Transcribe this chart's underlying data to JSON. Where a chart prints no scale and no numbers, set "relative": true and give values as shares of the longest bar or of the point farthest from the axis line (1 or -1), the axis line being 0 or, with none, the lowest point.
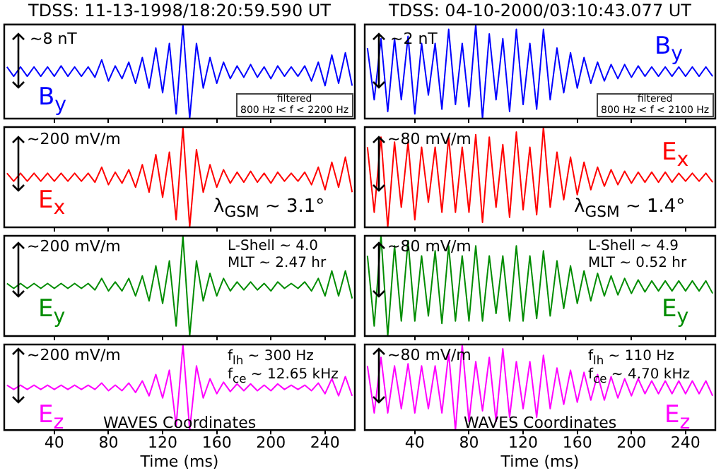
{
  "chart_data": [
    {
      "type": "line",
      "title": "TDSS: 11-13-1998/18:20:59.590 UT",
      "relative": true,
      "marker": "none",
      "tick_labels": false,
      "xlim": [
        3,
        262
      ],
      "xticks": [
        40,
        80,
        120,
        160,
        200,
        240
      ],
      "annotations": [
        "~8 nT",
        "filtered\n800 Hz < f < 2200 Hz"
      ],
      "series": [
        {
          "name": "B$_{y}$",
          "color": "#0000ff",
          "x": [
            5,
            10,
            15,
            20,
            25,
            30,
            35,
            40,
            45,
            50,
            55,
            60,
            65,
            70,
            75,
            80,
            85,
            90,
            95,
            100,
            105,
            110,
            115,
            120,
            125,
            130,
            135,
            140,
            145,
            150,
            155,
            160,
            165,
            170,
            175,
            180,
            185,
            190,
            195,
            200,
            205,
            210,
            215,
            220,
            225,
            230,
            235,
            240,
            245,
            250,
            255,
            260
          ],
          "values": [
            0.55,
            0.45,
            0.55,
            0.45,
            0.55,
            0.45,
            0.55,
            0.45,
            0.56,
            0.45,
            0.55,
            0.45,
            0.55,
            0.44,
            0.625,
            0.4,
            0.56,
            0.425,
            0.6,
            0.375,
            0.65,
            0.325,
            0.75,
            0.275,
            0.8,
            0.05,
            1,
            0,
            0.8,
            0.325,
            0.65,
            0.375,
            0.6,
            0.425,
            0.56,
            0.44,
            0.575,
            0.44,
            0.55,
            0.425,
            0.56,
            0.45,
            0.55,
            0.45,
            0.56,
            0.4,
            0.6,
            0.35,
            0.675,
            0.375,
            0.7,
            0.35
          ]
        }
      ]
    },
    {
      "type": "line",
      "relative": true,
      "marker": "none",
      "tick_labels": false,
      "xlim": [
        3,
        262
      ],
      "xticks": [
        40,
        80,
        120,
        160,
        200,
        240
      ],
      "annotations": [
        "~200 mV/m",
        "λ$_{GSM}$ ~ 3.1°"
      ],
      "series": [
        {
          "name": "E$_{x}$",
          "color": "#ff0000",
          "x": [
            5,
            10,
            15,
            20,
            25,
            30,
            35,
            40,
            45,
            50,
            55,
            60,
            65,
            70,
            75,
            80,
            85,
            90,
            95,
            100,
            105,
            110,
            115,
            120,
            125,
            130,
            135,
            140,
            145,
            150,
            155,
            160,
            165,
            170,
            175,
            180,
            185,
            190,
            195,
            200,
            205,
            210,
            215,
            220,
            225,
            230,
            235,
            240,
            245,
            250,
            255,
            260
          ],
          "values": [
            0.54,
            0.46,
            0.54,
            0.46,
            0.54,
            0.46,
            0.54,
            0.46,
            0.54,
            0.46,
            0.54,
            0.46,
            0.54,
            0.45,
            0.6,
            0.425,
            0.55,
            0.44,
            0.575,
            0.4,
            0.625,
            0.35,
            0.725,
            0.3,
            0.75,
            0.075,
            1,
            0,
            0.775,
            0.35,
            0.625,
            0.4,
            0.575,
            0.44,
            0.55,
            0.45,
            0.56,
            0.45,
            0.54,
            0.44,
            0.55,
            0.46,
            0.54,
            0.46,
            0.55,
            0.425,
            0.6,
            0.375,
            0.65,
            0.4,
            0.7,
            0.35
          ]
        }
      ]
    },
    {
      "type": "line",
      "relative": true,
      "marker": "none",
      "tick_labels": false,
      "xlim": [
        3,
        262
      ],
      "xticks": [
        40,
        80,
        120,
        160,
        200,
        240
      ],
      "annotations": [
        "~200 mV/m",
        "L-Shell ~ 4.0",
        "MLT ~ 2.47 hr"
      ],
      "series": [
        {
          "name": "E$_{y}$",
          "color": "#008c00",
          "x": [
            5,
            10,
            15,
            20,
            25,
            30,
            35,
            40,
            45,
            50,
            55,
            60,
            65,
            70,
            75,
            80,
            85,
            90,
            95,
            100,
            105,
            110,
            115,
            120,
            125,
            130,
            135,
            140,
            145,
            150,
            155,
            160,
            165,
            170,
            175,
            180,
            185,
            190,
            195,
            200,
            205,
            210,
            215,
            220,
            225,
            230,
            235,
            240,
            245,
            250,
            255,
            260
          ],
          "values": [
            0.525,
            0.475,
            0.525,
            0.475,
            0.525,
            0.475,
            0.525,
            0.475,
            0.525,
            0.475,
            0.525,
            0.475,
            0.525,
            0.46,
            0.575,
            0.45,
            0.54,
            0.45,
            0.575,
            0.4,
            0.6,
            0.35,
            0.7,
            0.325,
            0.75,
            0.1,
            1,
            0,
            0.75,
            0.35,
            0.625,
            0.4,
            0.575,
            0.45,
            0.54,
            0.46,
            0.54,
            0.46,
            0.525,
            0.45,
            0.54,
            0.475,
            0.525,
            0.475,
            0.54,
            0.45,
            0.575,
            0.4,
            0.65,
            0.4,
            0.65,
            0.375
          ]
        }
      ]
    },
    {
      "type": "line",
      "xlabel": "Time (ms)",
      "relative": true,
      "marker": "none",
      "tick_labels": "x",
      "xlim": [
        3,
        262
      ],
      "xticks": [
        40,
        80,
        120,
        160,
        200,
        240
      ],
      "annotations": [
        "~200 mV/m",
        "f$_{lh}$ ~ 300 Hz",
        "f$_{ce}$ ~ 12.65 kHz",
        "WAVES Coordinates"
      ],
      "series": [
        {
          "name": "E$_{z}$",
          "color": "#ff00ff",
          "x": [
            5,
            10,
            15,
            20,
            25,
            30,
            35,
            40,
            45,
            50,
            55,
            60,
            65,
            70,
            75,
            80,
            85,
            90,
            95,
            100,
            105,
            110,
            115,
            120,
            125,
            130,
            135,
            140,
            145,
            150,
            155,
            160,
            165,
            170,
            175,
            180,
            185,
            190,
            195,
            200,
            205,
            210,
            215,
            220,
            225,
            230,
            235,
            240,
            245,
            250,
            255,
            260
          ],
          "values": [
            0.525,
            0.475,
            0.525,
            0.475,
            0.525,
            0.475,
            0.525,
            0.475,
            0.525,
            0.475,
            0.525,
            0.475,
            0.525,
            0.475,
            0.55,
            0.46,
            0.525,
            0.46,
            0.55,
            0.44,
            0.575,
            0.4,
            0.65,
            0.375,
            0.7,
            0.05,
            1,
            0,
            0.75,
            0.375,
            0.6,
            0.425,
            0.56,
            0.45,
            0.54,
            0.46,
            0.54,
            0.46,
            0.525,
            0.46,
            0.54,
            0.475,
            0.525,
            0.475,
            0.525,
            0.46,
            0.55,
            0.425,
            0.6,
            0.4,
            0.625,
            0.4
          ]
        }
      ]
    },
    {
      "type": "line",
      "title": "TDSS: 04-10-2000/03:10:43.077 UT",
      "relative": true,
      "marker": "none",
      "tick_labels": false,
      "xlim": [
        3,
        262
      ],
      "xticks": [
        40,
        80,
        120,
        160,
        200,
        240
      ],
      "annotations": [
        "~2 nT",
        "filtered\n800 Hz < f < 2100 Hz"
      ],
      "series": [
        {
          "name": "B$_{y}$",
          "color": "#0000ff",
          "x": [
            5,
            10,
            15,
            20,
            25,
            30,
            35,
            40,
            45,
            50,
            55,
            60,
            65,
            70,
            75,
            80,
            85,
            90,
            95,
            100,
            105,
            110,
            115,
            120,
            125,
            130,
            135,
            140,
            145,
            150,
            155,
            160,
            165,
            170,
            175,
            180,
            185,
            190,
            195,
            200,
            205,
            210,
            215,
            220,
            225,
            230,
            235,
            240,
            245,
            250,
            255,
            260
          ],
          "values": [
            0.75,
            0.2,
            0.85,
            0.075,
            0.85,
            0.2,
            0.875,
            0.05,
            0.8,
            0.25,
            0.8,
            0.1,
            0.95,
            0.15,
            0.8,
            0.125,
            1,
            0,
            0.9,
            0.2,
            0.85,
            0.075,
            0.95,
            0.15,
            0.8,
            0.1,
            0.95,
            0.2,
            0.75,
            0.275,
            0.7,
            0.325,
            0.65,
            0.375,
            0.6,
            0.4,
            0.575,
            0.425,
            0.575,
            0.44,
            0.56,
            0.45,
            0.55,
            0.45,
            0.55,
            0.45,
            0.55,
            0.45,
            0.55,
            0.45,
            0.55,
            0.45
          ]
        }
      ]
    },
    {
      "type": "line",
      "relative": true,
      "marker": "none",
      "tick_labels": false,
      "xlim": [
        3,
        262
      ],
      "xticks": [
        40,
        80,
        120,
        160,
        200,
        240
      ],
      "annotations": [
        "~80 mV/m",
        "λ$_{GSM}$ ~ 1.4°"
      ],
      "series": [
        {
          "name": "E$_{x}$",
          "color": "#ff0000",
          "x": [
            5,
            10,
            15,
            20,
            25,
            30,
            35,
            40,
            45,
            50,
            55,
            60,
            65,
            70,
            75,
            80,
            85,
            90,
            95,
            100,
            105,
            110,
            115,
            120,
            125,
            130,
            135,
            140,
            145,
            150,
            155,
            160,
            165,
            170,
            175,
            180,
            185,
            190,
            195,
            200,
            205,
            210,
            215,
            220,
            225,
            230,
            235,
            240,
            245,
            250,
            255,
            260
          ],
          "values": [
            0.8,
            0.15,
            0.9,
            0,
            0.85,
            0.2,
            0.85,
            0.075,
            0.8,
            0.25,
            0.8,
            0.15,
            0.9,
            0.15,
            0.8,
            0.15,
            0.925,
            0.05,
            0.9,
            0.2,
            0.825,
            0.1,
            0.95,
            0.175,
            0.8,
            0.125,
            1,
            0.2,
            0.75,
            0.275,
            0.7,
            0.325,
            0.65,
            0.375,
            0.6,
            0.41,
            0.575,
            0.425,
            0.56,
            0.44,
            0.55,
            0.45,
            0.55,
            0.45,
            0.55,
            0.45,
            0.54,
            0.46,
            0.54,
            0.46,
            0.54,
            0.45
          ]
        }
      ]
    },
    {
      "type": "line",
      "relative": true,
      "marker": "none",
      "tick_labels": false,
      "xlim": [
        3,
        262
      ],
      "xticks": [
        40,
        80,
        120,
        160,
        200,
        240
      ],
      "annotations": [
        "~80 mV/m",
        "L-Shell ~ 4.9",
        "MLT ~ 0.52 hr"
      ],
      "series": [
        {
          "name": "E$_{y}$",
          "color": "#008c00",
          "x": [
            5,
            10,
            15,
            20,
            25,
            30,
            35,
            40,
            45,
            50,
            55,
            60,
            65,
            70,
            75,
            80,
            85,
            90,
            95,
            100,
            105,
            110,
            115,
            120,
            125,
            130,
            135,
            140,
            145,
            150,
            155,
            160,
            165,
            170,
            175,
            180,
            185,
            190,
            195,
            200,
            205,
            210,
            215,
            220,
            225,
            230,
            235,
            240,
            245,
            250,
            255,
            260
          ],
          "values": [
            0.8,
            0.1,
            1,
            0,
            0.9,
            0.15,
            0.95,
            0.15,
            0.8,
            0.2,
            0.85,
            0.125,
            0.9,
            0.15,
            0.8,
            0.15,
            0.9,
            0.15,
            0.8,
            0.225,
            0.8,
            0.15,
            0.9,
            0.15,
            0.8,
            0.175,
            0.85,
            0.2,
            0.75,
            0.275,
            0.7,
            0.325,
            0.65,
            0.35,
            0.625,
            0.4,
            0.6,
            0.41,
            0.575,
            0.425,
            0.56,
            0.44,
            0.55,
            0.45,
            0.55,
            0.45,
            0.55,
            0.45,
            0.55,
            0.45,
            0.55,
            0.425
          ]
        }
      ]
    },
    {
      "type": "line",
      "xlabel": "Time (ms)",
      "relative": true,
      "marker": "none",
      "tick_labels": "x",
      "xlim": [
        3,
        262
      ],
      "xticks": [
        40,
        80,
        120,
        160,
        200,
        240
      ],
      "annotations": [
        "~80 mV/m",
        "f$_{lh}$ ~ 110 Hz",
        "f$_{ce}$ ~ 4.70 kHz",
        "WAVES Coordinates"
      ],
      "series": [
        {
          "name": "E$_{z}$",
          "color": "#ff00ff",
          "x": [
            5,
            10,
            15,
            20,
            25,
            30,
            35,
            40,
            45,
            50,
            55,
            60,
            65,
            70,
            75,
            80,
            85,
            90,
            95,
            100,
            105,
            110,
            115,
            120,
            125,
            130,
            135,
            140,
            145,
            150,
            155,
            160,
            165,
            170,
            175,
            180,
            185,
            190,
            195,
            200,
            205,
            210,
            215,
            220,
            225,
            230,
            235,
            240,
            245,
            250,
            255,
            260
          ],
          "values": [
            0.75,
            0.2,
            0.85,
            0.2,
            0.75,
            0.25,
            0.775,
            0.2,
            0.75,
            0.25,
            0.75,
            0.2,
            0.9,
            0,
            1,
            0.1,
            0.8,
            0.225,
            0.85,
            0.1,
            0.95,
            0.15,
            0.8,
            0.25,
            0.8,
            0.15,
            0.875,
            0.25,
            0.725,
            0.3,
            0.7,
            0.325,
            0.675,
            0.35,
            0.65,
            0.35,
            0.625,
            0.375,
            0.6,
            0.4,
            0.6,
            0.425,
            0.575,
            0.425,
            0.575,
            0.425,
            0.575,
            0.425,
            0.575,
            0.425,
            0.575,
            0.4
          ]
        }
      ]
    }
  ]
}
